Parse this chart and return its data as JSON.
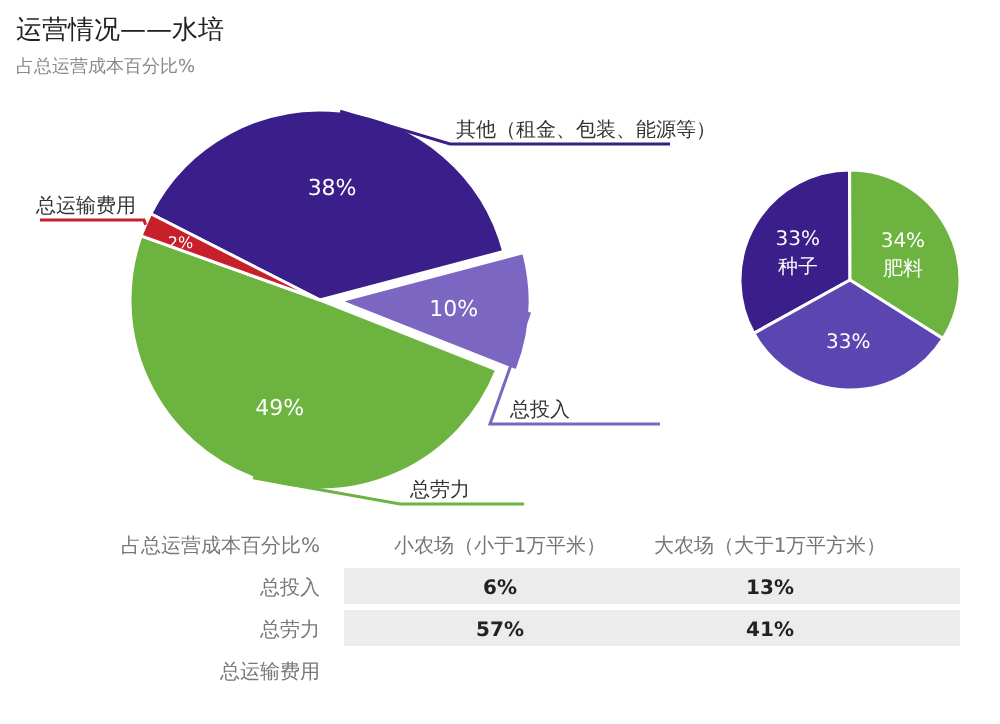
{
  "chart_data": [
    {
      "type": "pie",
      "title": "运营情况——水培",
      "subtitle": "占总运营成本百分比%",
      "categories": [
        "其他（租金、包装、能源等）",
        "总投入",
        "总劳力",
        "总运输费用"
      ],
      "values": [
        38,
        10,
        49,
        2
      ],
      "value_labels": [
        "38%",
        "10%",
        "49%",
        "2%"
      ],
      "colors": [
        "#3a1f8a",
        "#7b66c2",
        "#6cb33f",
        "#c8202a"
      ]
    },
    {
      "type": "pie",
      "categories": [
        "种子",
        "肥料",
        null
      ],
      "values": [
        33,
        34,
        33
      ],
      "value_labels": [
        "33%",
        "34%",
        "33%"
      ],
      "colors": [
        "#3a1f8a",
        "#6cb33f",
        "#5b45b0"
      ]
    },
    {
      "type": "other",
      "annotations": [
        "占总运营成本百分比%",
        "小农场（小于1万平米）",
        "大农场（大于1万平方米）",
        "总投入",
        "6%",
        "13%",
        "总劳力",
        "57%",
        "41%",
        "总运输费用"
      ]
    }
  ]
}
